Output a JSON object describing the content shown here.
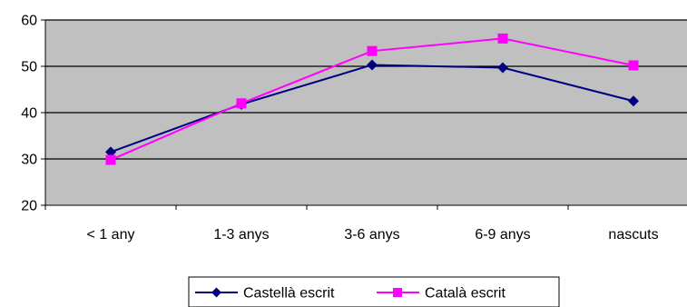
{
  "chart_data": {
    "type": "line",
    "categories": [
      "< 1 any",
      "1-3 anys",
      "3-6 anys",
      "6-9 anys",
      "nascuts"
    ],
    "series": [
      {
        "name": "Castellà escrit",
        "values": [
          31.5,
          41.8,
          50.3,
          49.7,
          42.5
        ],
        "color": "#000080",
        "marker": "diamond"
      },
      {
        "name": "Català escrit",
        "values": [
          29.8,
          42.0,
          53.3,
          56.0,
          50.2
        ],
        "color": "#ff00ff",
        "marker": "square"
      }
    ],
    "ylim": [
      20,
      60
    ],
    "yticks": [
      20,
      30,
      40,
      50,
      60
    ],
    "xlabel": "",
    "ylabel": "",
    "title": "",
    "grid": true,
    "plot_background": "#c0c0c0",
    "legend_position": "bottom"
  }
}
